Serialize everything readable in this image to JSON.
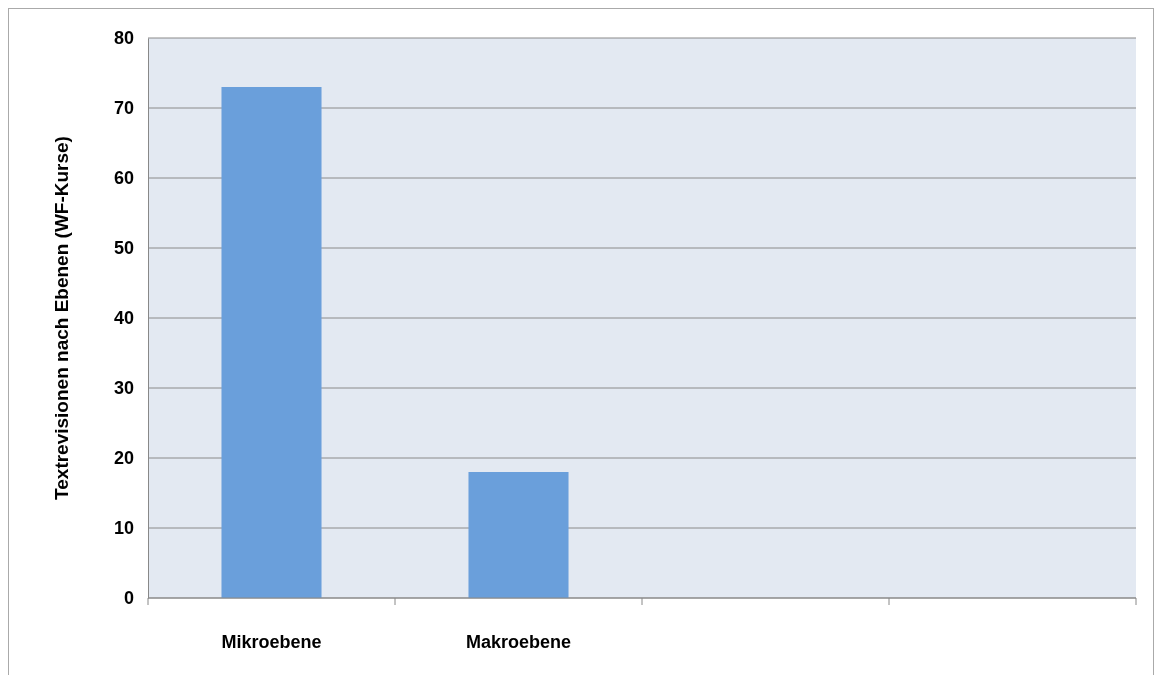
{
  "chart_data": {
    "type": "bar",
    "ylabel": "Textrevisionen nach Ebenen (WF-Kurse)",
    "categories": [
      "Mikroebene",
      "Makroebene",
      null,
      null
    ],
    "values": [
      73,
      18,
      null,
      null
    ],
    "color": "#6a9fdb",
    "ylim": [
      0,
      80
    ],
    "yticks": [
      0,
      10,
      20,
      30,
      40,
      50,
      60,
      70,
      80
    ],
    "grid": "y"
  }
}
